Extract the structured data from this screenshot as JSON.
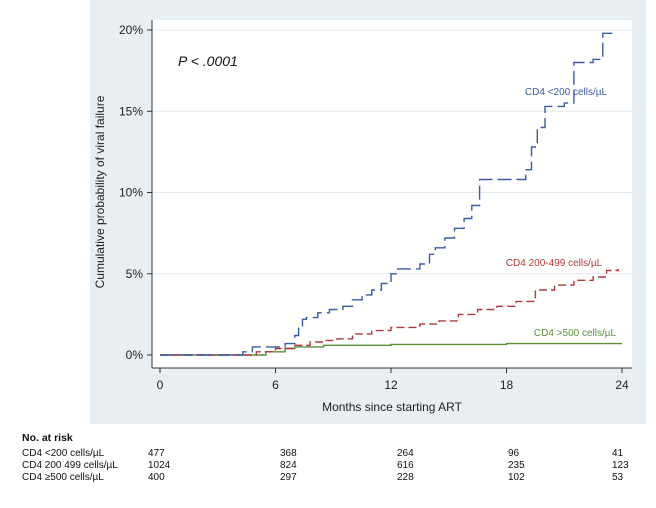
{
  "chart_data": {
    "type": "line",
    "title": "",
    "xlabel": "Months since starting ART",
    "ylabel": "Cumulative probability of viral failure",
    "xlim": [
      0,
      24
    ],
    "ylim": [
      0,
      20
    ],
    "xticks": [
      0,
      6,
      12,
      18,
      24
    ],
    "xtick_labels": [
      "0",
      "6",
      "12",
      "18",
      "24"
    ],
    "yticks": [
      0,
      5,
      10,
      15,
      20
    ],
    "ytick_labels": [
      "0%",
      "5%",
      "10%",
      "15%",
      "20%"
    ],
    "grid": "horizontal",
    "annotation": "P < .0001",
    "series": [
      {
        "name": "CD4 <200 cells/µL",
        "color": "#3b5ba5",
        "dash": "long-dash",
        "x": [
          0,
          4.3,
          4.8,
          6.5,
          7.0,
          7.2,
          7.4,
          7.6,
          8.2,
          8.8,
          9.5,
          10.0,
          10.5,
          11.0,
          11.5,
          12.0,
          12.3,
          13.5,
          14.0,
          14.3,
          14.8,
          15.3,
          15.8,
          16.2,
          16.6,
          18.0,
          19.0,
          19.3,
          19.6,
          20.0,
          21.0,
          21.5,
          22.5,
          23.0,
          23.5
        ],
        "y": [
          0,
          0.2,
          0.5,
          0.7,
          1.2,
          1.8,
          2.2,
          2.3,
          2.6,
          2.8,
          3.0,
          3.4,
          3.7,
          4.0,
          4.4,
          5.0,
          5.3,
          5.6,
          6.2,
          6.6,
          7.2,
          7.8,
          8.4,
          9.2,
          10.8,
          10.8,
          11.4,
          12.8,
          14.0,
          15.3,
          15.5,
          18.0,
          18.2,
          19.8,
          19.8
        ]
      },
      {
        "name": "CD4 200-499 cells/µL",
        "color": "#b03a3a",
        "dash": "dash",
        "x": [
          0,
          5.0,
          6.0,
          7.0,
          7.8,
          8.5,
          9.2,
          10.0,
          11.0,
          12.0,
          13.5,
          14.5,
          15.5,
          16.5,
          17.5,
          18.5,
          19.5,
          20.5,
          21.5,
          22.5,
          23.2,
          23.8
        ],
        "y": [
          0,
          0.2,
          0.4,
          0.6,
          0.8,
          0.9,
          1.0,
          1.3,
          1.5,
          1.7,
          1.9,
          2.1,
          2.5,
          2.8,
          3.0,
          3.3,
          4.0,
          4.3,
          4.6,
          4.8,
          5.2,
          5.3
        ]
      },
      {
        "name": "CD4 >500 cells/µL",
        "color": "#5a8f3a",
        "dash": "solid",
        "x": [
          0,
          5.5,
          6.5,
          7.0,
          8.5,
          12.0,
          18.0,
          24.0
        ],
        "y": [
          0,
          0.2,
          0.4,
          0.5,
          0.6,
          0.65,
          0.7,
          0.7
        ]
      }
    ]
  },
  "risk_table": {
    "title": "No. at risk",
    "time_points": [
      0,
      6,
      12,
      18,
      24
    ],
    "rows": [
      {
        "label": "CD4 <200 cells/µL",
        "values": [
          "477",
          "368",
          "264",
          "96",
          "41"
        ]
      },
      {
        "label": "CD4 200 499 cells/µL",
        "values": [
          "1024",
          "824",
          "616",
          "235",
          "123"
        ]
      },
      {
        "label": "CD4 ≥500 cells/µL",
        "values": [
          "400",
          "297",
          "228",
          "102",
          "53"
        ]
      }
    ]
  }
}
